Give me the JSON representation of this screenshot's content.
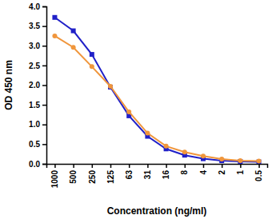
{
  "chart_data": {
    "type": "line",
    "x_label": "Concentration (ng/ml)",
    "y_label": "OD 450 nm",
    "categories": [
      "1000",
      "500",
      "250",
      "125",
      "63",
      "31",
      "16",
      "8",
      "4",
      "2",
      "1",
      "0.5"
    ],
    "series": [
      {
        "color": "#2020c8",
        "marker": "square",
        "line_style": "solid",
        "values": [
          3.72,
          3.38,
          2.78,
          1.95,
          1.22,
          0.7,
          0.38,
          0.22,
          0.13,
          0.08,
          0.06,
          0.05
        ]
      },
      {
        "color": "#f0963c",
        "marker": "circle",
        "line_style": "solid",
        "values": [
          3.25,
          2.96,
          2.47,
          1.97,
          1.32,
          0.78,
          0.45,
          0.3,
          0.2,
          0.12,
          0.08,
          0.07
        ]
      }
    ],
    "ylim": [
      0,
      4
    ],
    "yticks": [
      {
        "value": 0,
        "label": "0.0"
      },
      0.5,
      {
        "value": 1,
        "label": "1.0"
      },
      1.5,
      {
        "value": 2,
        "label": "2.0"
      },
      2.5,
      {
        "value": 3,
        "label": "3.0"
      },
      3.5,
      {
        "value": 4,
        "label": "4.0"
      }
    ],
    "grid": false
  }
}
